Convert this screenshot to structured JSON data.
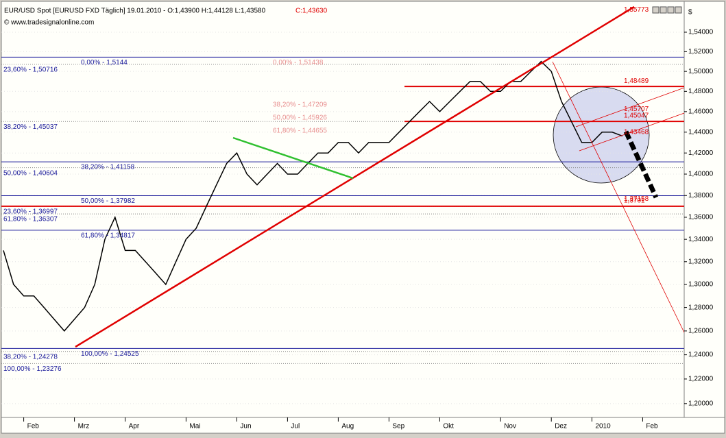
{
  "chart_data": {
    "type": "line",
    "title": "EUR/USD Spot [EURUSD FXD  Täglich] 19.01.2010 - O:1,43900 H:1,44128 L:1,43580",
    "close_label": "C:1,43630",
    "subtitle": "© www.tradesignalonline.com",
    "y_unit": "$",
    "log_scale": true,
    "color": "#000000",
    "categories": [
      null,
      null,
      "Feb",
      null,
      null,
      null,
      null,
      "Mrz",
      null,
      null,
      null,
      null,
      "Apr",
      null,
      null,
      null,
      null,
      null,
      "Mai",
      null,
      null,
      null,
      null,
      "Jun",
      null,
      null,
      null,
      null,
      "Jul",
      null,
      null,
      null,
      null,
      "Aug",
      null,
      null,
      null,
      null,
      "Sep",
      null,
      null,
      null,
      null,
      "Okt",
      null,
      null,
      null,
      null,
      null,
      "Nov",
      null,
      null,
      null,
      null,
      "Dez",
      null,
      null,
      null,
      "2010",
      null,
      null,
      null,
      null,
      "Feb"
    ],
    "values": [
      1.33,
      1.3,
      1.29,
      1.29,
      1.28,
      1.27,
      1.26,
      1.27,
      1.28,
      1.3,
      1.34,
      1.36,
      1.33,
      1.33,
      1.32,
      1.31,
      1.3,
      1.32,
      1.34,
      1.35,
      1.37,
      1.39,
      1.41,
      1.42,
      1.4,
      1.39,
      1.4,
      1.41,
      1.4,
      1.4,
      1.41,
      1.42,
      1.42,
      1.43,
      1.43,
      1.42,
      1.43,
      1.43,
      1.43,
      1.44,
      1.45,
      1.46,
      1.47,
      1.46,
      1.47,
      1.48,
      1.49,
      1.49,
      1.48,
      1.48,
      1.49,
      1.49,
      1.5,
      1.51,
      1.5,
      1.47,
      1.45,
      1.43,
      1.43,
      1.44,
      1.44,
      1.4363,
      null,
      null
    ],
    "ylim": [
      1.19,
      1.565
    ],
    "yticks": [
      {
        "value": 1.54,
        "label": "1,54000"
      },
      {
        "value": 1.52,
        "label": "1,52000"
      },
      {
        "value": 1.5,
        "label": "1,50000"
      },
      {
        "value": 1.48,
        "label": "1,48000"
      },
      {
        "value": 1.46,
        "label": "1,46000"
      },
      {
        "value": 1.44,
        "label": "1,44000"
      },
      {
        "value": 1.42,
        "label": "1,42000"
      },
      {
        "value": 1.4,
        "label": "1,40000"
      },
      {
        "value": 1.38,
        "label": "1,38000"
      },
      {
        "value": 1.36,
        "label": "1,36000"
      },
      {
        "value": 1.34,
        "label": "1,34000"
      },
      {
        "value": 1.32,
        "label": "1,32000"
      },
      {
        "value": 1.3,
        "label": "1,30000"
      },
      {
        "value": 1.28,
        "label": "1,28000"
      },
      {
        "value": 1.26,
        "label": "1,26000"
      },
      {
        "value": 1.24,
        "label": "1,24000"
      },
      {
        "value": 1.22,
        "label": "1,22000"
      },
      {
        "value": 1.2,
        "label": "1,20000"
      }
    ],
    "grid": true,
    "levels_left": [
      {
        "label": "23,60% - 1,50716",
        "value": 1.50716
      },
      {
        "label": "38,20% - 1,45037",
        "value": 1.45037
      },
      {
        "label": "50,00% - 1,40604",
        "value": 1.40604
      },
      {
        "label": "23,60% - 1,36997",
        "value": 1.36997
      },
      {
        "label": "61,80% - 1,36307",
        "value": 1.36307
      },
      {
        "label": "38,20% - 1,24278",
        "value": 1.24278
      },
      {
        "label": "100,00% - 1,23276",
        "value": 1.23276
      }
    ],
    "levels_blue": [
      {
        "label": "0,00% - 1,5144",
        "value": 1.5144
      },
      {
        "label": "38,20% - 1,41158",
        "value": 1.41158
      },
      {
        "label": "50,00% - 1,37982",
        "value": 1.37982
      },
      {
        "label": "61,80% - 1,34817",
        "value": 1.34817
      },
      {
        "label": "100,00% - 1,24525",
        "value": 1.24525
      }
    ],
    "levels_pink": [
      {
        "label": "0,00% - 1,51438",
        "value": 1.51438
      },
      {
        "label": "38,20% - 1,47209",
        "value": 1.47209
      },
      {
        "label": "50,00% - 1,45926",
        "value": 1.45926
      },
      {
        "label": "61,80% - 1,44655",
        "value": 1.44655
      }
    ],
    "levels_red": [
      {
        "label": "1,55773",
        "value": 1.55773,
        "line": false
      },
      {
        "label": "1,48489",
        "value": 1.48489,
        "line": true
      },
      {
        "label": "1,45707",
        "value": 1.45707,
        "line": false
      },
      {
        "label": "1,45047",
        "value": 1.45047,
        "line": true
      },
      {
        "label": "1,43468",
        "value": 1.43468,
        "line": false
      },
      {
        "label": "1,37158",
        "value": 1.37158,
        "line": false
      },
      {
        "label": "1,3701",
        "value": 1.3701,
        "line": true
      }
    ]
  }
}
